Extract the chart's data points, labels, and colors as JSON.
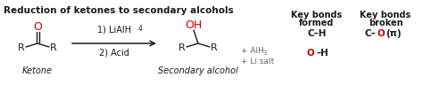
{
  "title": "Reduction of ketones to secondary alcohols",
  "title_fontsize": 7.5,
  "bg_color": "#ffffff",
  "ketone_label": "Ketone",
  "product_label": "Secondary alcohol",
  "step1": "1) LiAlH",
  "step1_sub": "4",
  "step2": "2) Acid",
  "byproduct1": "+ AlH",
  "byproduct1_sub": "3",
  "byproduct2": "+ Li salt",
  "key_bonds_formed_header1": "Key bonds",
  "key_bonds_formed_header2": "formed",
  "key_bonds_broken_header1": "Key bonds",
  "key_bonds_broken_header2": "broken",
  "bond_formed_ch": "C–H",
  "bond_formed_oh_o": "O",
  "bond_formed_oh_h": "–H",
  "bond_broken_c": "C–",
  "bond_broken_o": "O",
  "bond_broken_pi": "(π)",
  "black": "#1a1a1a",
  "red": "#cc0000",
  "gray": "#666666"
}
